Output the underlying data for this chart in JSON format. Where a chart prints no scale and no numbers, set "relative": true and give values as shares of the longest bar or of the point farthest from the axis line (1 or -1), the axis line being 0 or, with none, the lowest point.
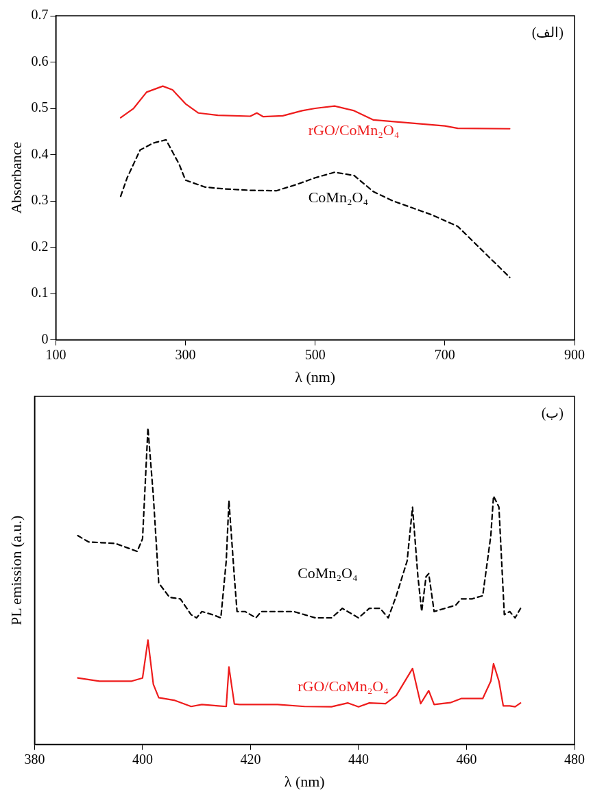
{
  "chart_data": [
    {
      "type": "line",
      "xlabel": "λ (nm)",
      "ylabel": "Absorbance",
      "annotations": [
        "(الف)"
      ],
      "xlim": [
        100,
        900
      ],
      "xticks": [
        100,
        300,
        500,
        700,
        900
      ],
      "ylim": [
        0,
        0.7
      ],
      "yticks": [
        0,
        0.1,
        0.2,
        0.3,
        0.4,
        0.5,
        0.6,
        0.7
      ],
      "series": [
        {
          "name": "rGO/CoMn₂O₄",
          "color": "#ee1c1c",
          "line_style": "solid",
          "x": [
            200,
            220,
            240,
            265,
            280,
            300,
            320,
            350,
            400,
            410,
            420,
            450,
            480,
            500,
            530,
            560,
            590,
            650,
            700,
            720,
            800
          ],
          "values": [
            0.48,
            0.5,
            0.535,
            0.548,
            0.54,
            0.51,
            0.49,
            0.485,
            0.483,
            0.49,
            0.482,
            0.484,
            0.495,
            0.5,
            0.505,
            0.495,
            0.475,
            0.468,
            0.462,
            0.457,
            0.456
          ]
        },
        {
          "name": "CoMn₂O₄",
          "color": "#000000",
          "line_style": "dashed",
          "x": [
            200,
            210,
            230,
            250,
            270,
            290,
            300,
            330,
            360,
            400,
            440,
            470,
            500,
            530,
            560,
            590,
            620,
            680,
            720,
            760,
            800
          ],
          "values": [
            0.31,
            0.35,
            0.41,
            0.425,
            0.432,
            0.38,
            0.345,
            0.33,
            0.326,
            0.323,
            0.322,
            0.335,
            0.35,
            0.362,
            0.355,
            0.32,
            0.3,
            0.27,
            0.245,
            0.19,
            0.135
          ]
        }
      ]
    },
    {
      "type": "line",
      "relative": true,
      "xlabel": "λ (nm)",
      "ylabel": "PL emission (a.u.)",
      "annotations": [
        "(ب)"
      ],
      "xlim": [
        380,
        480
      ],
      "xticks": [
        380,
        400,
        420,
        440,
        460,
        480
      ],
      "series": [
        {
          "name": "CoMn₂O₄",
          "color": "#000000",
          "line_style": "dashed",
          "x": [
            388,
            390,
            395,
            399,
            400,
            401,
            402,
            403,
            405,
            407,
            409,
            410,
            411,
            413,
            414.5,
            415.5,
            416,
            417,
            417.5,
            419,
            421,
            422,
            425,
            428,
            430,
            432,
            435,
            437,
            439,
            440,
            442,
            444,
            445.5,
            447,
            449,
            450,
            451,
            451.7,
            452.5,
            453,
            454,
            456,
            458,
            459,
            461,
            463,
            464.5,
            465,
            466,
            467,
            468,
            469,
            470
          ],
          "values": [
            0.66,
            0.64,
            0.635,
            0.61,
            0.65,
            1.0,
            0.785,
            0.51,
            0.465,
            0.46,
            0.41,
            0.4,
            0.42,
            0.41,
            0.4,
            0.58,
            0.77,
            0.53,
            0.42,
            0.42,
            0.4,
            0.42,
            0.42,
            0.42,
            0.41,
            0.4,
            0.4,
            0.43,
            0.41,
            0.4,
            0.43,
            0.43,
            0.4,
            0.47,
            0.58,
            0.75,
            0.53,
            0.42,
            0.53,
            0.54,
            0.42,
            0.43,
            0.44,
            0.46,
            0.46,
            0.47,
            0.66,
            0.785,
            0.75,
            0.41,
            0.42,
            0.4,
            0.43
          ]
        },
        {
          "name": "rGO/CoMn₂O₄",
          "color": "#ee1c1c",
          "line_style": "solid",
          "x": [
            388,
            392,
            398,
            400,
            401,
            402,
            403,
            406,
            409,
            411,
            414,
            415.5,
            416,
            417,
            418,
            420,
            425,
            430,
            435,
            438,
            440,
            442,
            445,
            447,
            450,
            451.5,
            453,
            454,
            457,
            459,
            463,
            464.5,
            465,
            466,
            466.8,
            468,
            469,
            470
          ],
          "values": [
            0.21,
            0.2,
            0.2,
            0.21,
            0.33,
            0.19,
            0.148,
            0.139,
            0.12,
            0.126,
            0.122,
            0.12,
            0.245,
            0.128,
            0.126,
            0.126,
            0.126,
            0.12,
            0.119,
            0.131,
            0.119,
            0.131,
            0.129,
            0.155,
            0.24,
            0.129,
            0.17,
            0.126,
            0.132,
            0.145,
            0.145,
            0.2,
            0.255,
            0.2,
            0.122,
            0.122,
            0.119,
            0.131
          ]
        }
      ]
    }
  ]
}
